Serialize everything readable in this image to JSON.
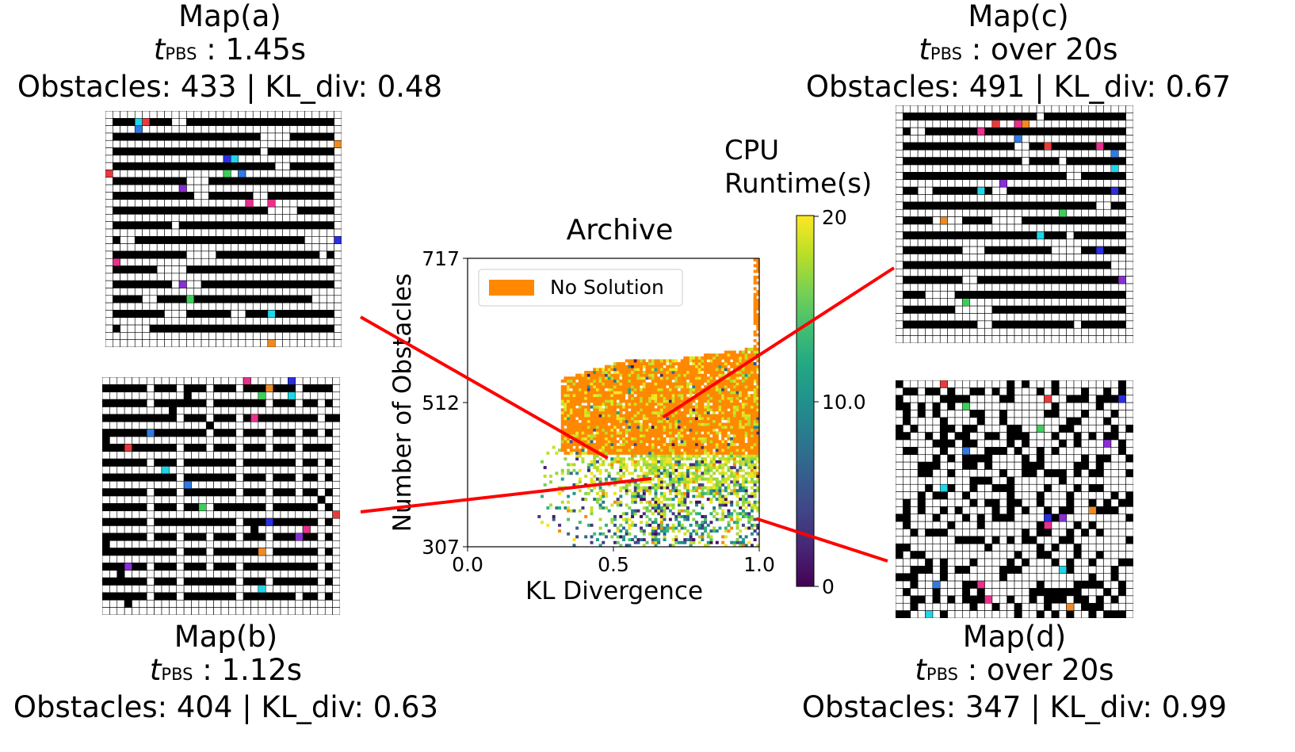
{
  "figure": {
    "colorbar": {
      "title_line1": "CPU",
      "title_line2": "Runtime(s)",
      "ticks": [
        "20",
        "10.0",
        "0"
      ],
      "range": [
        0,
        20
      ]
    },
    "connector_color": "#ff0000",
    "maps": [
      {
        "key": "a",
        "title": "Map(a)",
        "t_symbol": "t",
        "t_sub": "PBS",
        "t_text": " : 1.45s",
        "stats": "Obstacles: 433 | KL_div: 0.48",
        "layout": "horizontal",
        "n": 433,
        "seed": 11
      },
      {
        "key": "b",
        "title": "Map(b)",
        "t_symbol": "t",
        "t_sub": "PBS",
        "t_text": " : 1.12s",
        "stats": "Obstacles: 404 | KL_div: 0.63",
        "layout": "columns",
        "n": 404,
        "seed": 23
      },
      {
        "key": "c",
        "title": "Map(c)",
        "t_symbol": "t",
        "t_sub": "PBS",
        "t_text": " : over 20s",
        "stats": "Obstacles: 491 | KL_div: 0.67",
        "layout": "horizontal",
        "n": 491,
        "seed": 37
      },
      {
        "key": "d",
        "title": "Map(d)",
        "t_symbol": "t",
        "t_sub": "PBS",
        "t_text": " : over 20s",
        "stats": "Obstacles: 347 | KL_div: 0.99",
        "layout": "random",
        "n": 347,
        "seed": 51
      }
    ],
    "agent_colors": [
      "#1fd6e8",
      "#e8308c",
      "#2f7be3",
      "#ef8a22",
      "#e83a3a",
      "#3ccf5c",
      "#8a2fd6",
      "#2a2fe0"
    ]
  },
  "chart_data": {
    "type": "heatmap",
    "title": "Archive",
    "xlabel": "KL Divergence",
    "ylabel": "Number of Obstacles",
    "xlim": [
      0.0,
      1.0
    ],
    "ylim": [
      307,
      717
    ],
    "xticks": [
      "0.0",
      "0.5",
      "1.0"
    ],
    "yticks": [
      "307",
      "512",
      "717"
    ],
    "legend": {
      "label": "No Solution",
      "color": "#ff8800",
      "position": "top-left"
    },
    "highlighted_points": [
      {
        "map": "a",
        "kl": 0.48,
        "obstacles": 433
      },
      {
        "map": "b",
        "kl": 0.63,
        "obstacles": 404
      },
      {
        "map": "c",
        "kl": 0.67,
        "obstacles": 491
      },
      {
        "map": "d",
        "kl": 0.99,
        "obstacles": 347
      }
    ],
    "no_solution_region": {
      "kl_range": [
        0.32,
        1.0
      ],
      "obstacle_range": [
        440,
        573
      ]
    },
    "solved_region": {
      "kl_range": [
        0.22,
        1.0
      ],
      "obstacle_range": [
        307,
        450
      ]
    }
  }
}
